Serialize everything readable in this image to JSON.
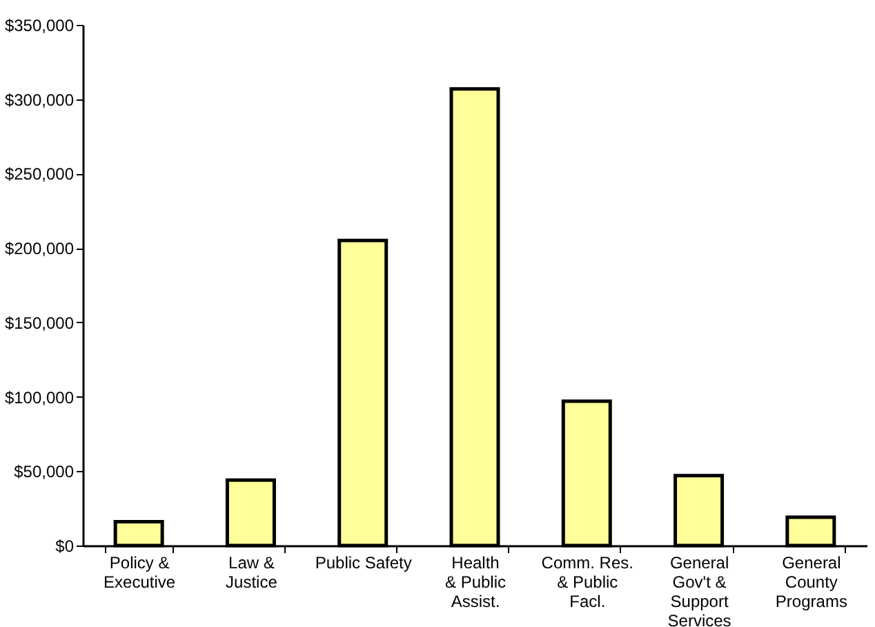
{
  "chart_data": {
    "type": "bar",
    "categories": [
      "Policy &\nExecutive",
      "Law &\nJustice",
      "Public Safety",
      "Health\n& Public\nAssist.",
      "Comm. Res.\n& Public\nFacl.",
      "General\nGov't &\nSupport\nServices",
      "General\nCounty\nPrograms"
    ],
    "values": [
      16000,
      44000,
      205000,
      307000,
      97000,
      47000,
      19000
    ],
    "color": "#ffff99",
    "ylim": [
      0,
      350000
    ],
    "yticks": [
      {
        "value": 0,
        "label": "$0"
      },
      {
        "value": 50000,
        "label": "$50,000"
      },
      {
        "value": 100000,
        "label": "$100,000"
      },
      {
        "value": 150000,
        "label": "$150,000"
      },
      {
        "value": 200000,
        "label": "$200,000"
      },
      {
        "value": 250000,
        "label": "$250,000"
      },
      {
        "value": 300000,
        "label": "$300,000"
      },
      {
        "value": 350000,
        "label": "$350,000"
      }
    ],
    "grid": false
  }
}
